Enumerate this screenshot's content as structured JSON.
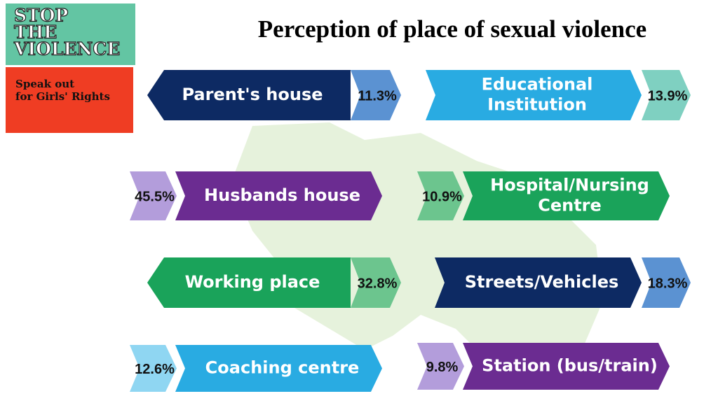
{
  "logo": {
    "title_lines": [
      "STOP",
      "THE",
      "VIOLENCE"
    ],
    "tagline_lines": [
      "Speak out",
      "for Girls' Rights"
    ]
  },
  "title": "Perception of place of sexual violence",
  "items": [
    {
      "label_lines": [
        "Parent's house"
      ],
      "value": "11.3%"
    },
    {
      "label_lines": [
        "Educational",
        "Institution"
      ],
      "value": "13.9%"
    },
    {
      "label_lines": [
        "Husbands house"
      ],
      "value": "45.5%"
    },
    {
      "label_lines": [
        "Hospital/Nursing",
        "Centre"
      ],
      "value": "10.9%"
    },
    {
      "label_lines": [
        "Working place"
      ],
      "value": "32.8%"
    },
    {
      "label_lines": [
        "Streets/Vehicles"
      ],
      "value": "18.3%"
    },
    {
      "label_lines": [
        "Coaching centre"
      ],
      "value": "12.6%"
    },
    {
      "label_lines": [
        "Station (bus/train)"
      ],
      "value": "9.8%"
    }
  ]
}
